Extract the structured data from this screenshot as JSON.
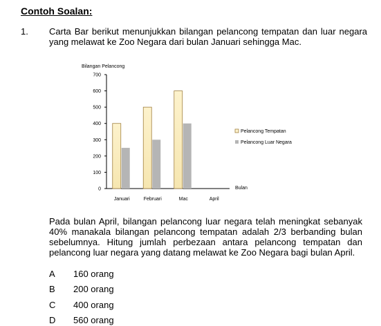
{
  "heading": "Contoh Soalan:",
  "question": {
    "number": "1.",
    "intro": "Carta Bar berikut menunjukkan bilangan pelancong tempatan dan luar negara yang melawat ke Zoo Negara dari bulan Januari sehingga Mac.",
    "body": "Pada bulan April, bilangan pelancong luar negara telah meningkat sebanyak 40% manakala bilangan pelancong tempatan adalah 2/3 berbanding bulan sebelumnya. Hitung jumlah perbezaan antara pelancong tempatan dan pelancong luar negara yang datang melawat ke Zoo Negara bagi bulan April."
  },
  "options": [
    {
      "letter": "A",
      "text": "160 orang"
    },
    {
      "letter": "B",
      "text": "200 orang"
    },
    {
      "letter": "C",
      "text": "400 orang"
    },
    {
      "letter": "D",
      "text": "560 orang"
    }
  ],
  "colors": {
    "tempatan_fill": "#fdf2cc",
    "tempatan_stroke": "#a08040",
    "luar_fill": "#b5b5b5",
    "axis": "#000000"
  },
  "chart_data": {
    "type": "bar",
    "ylabel": "Bilangan Pelancong",
    "xlabel": "Bulan",
    "ylim": [
      0,
      700
    ],
    "yticks": [
      0,
      100,
      200,
      300,
      400,
      500,
      600,
      700
    ],
    "categories": [
      "Januari",
      "Februari",
      "Mac",
      "April"
    ],
    "series": [
      {
        "name": "Pelancong Tempatan",
        "values": [
          400,
          500,
          600,
          null
        ]
      },
      {
        "name": "Pelancong Luar Negara",
        "values": [
          250,
          300,
          400,
          null
        ]
      }
    ],
    "legend_position": "right",
    "grid": false
  }
}
